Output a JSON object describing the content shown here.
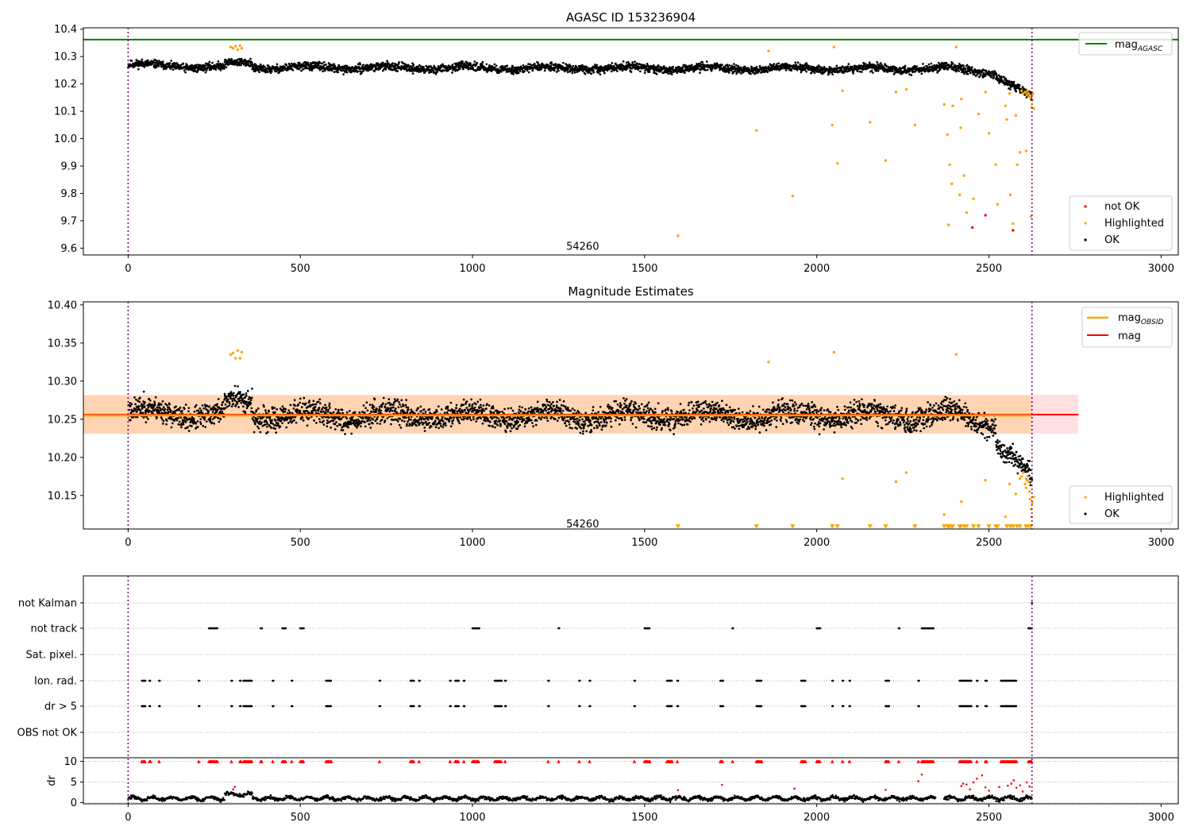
{
  "chart_data": [
    {
      "type": "scatter",
      "title": "AGASC ID 153236904",
      "xlim": [
        -130,
        3050
      ],
      "ylim": [
        9.575,
        10.405
      ],
      "xticks": [
        0,
        500,
        1000,
        1500,
        2000,
        2500,
        3000
      ],
      "yticks": [
        9.6,
        9.7,
        9.8,
        9.9,
        10.0,
        10.1,
        10.2,
        10.3,
        10.4
      ],
      "ytick_labels": [
        "9.6",
        "9.7",
        "9.8",
        "9.9",
        "10.0",
        "10.1",
        "10.2",
        "10.3",
        "10.4"
      ],
      "annotation": {
        "x": 1320,
        "y": 9.6,
        "text": "54260"
      },
      "vlines": [
        0,
        2625
      ],
      "hline": {
        "name": "mag_AGASC",
        "y": 10.362,
        "color": "#008000"
      },
      "legend": {
        "position": "top-right",
        "entries": [
          {
            "base": "mag",
            "sub": "AGASC",
            "color": "#008000",
            "marker": "line"
          }
        ]
      },
      "legend2": {
        "position": "bottom-right",
        "entries": [
          {
            "label": "not OK",
            "color": "#ff0000"
          },
          {
            "label": "Highlighted",
            "color": "#ffa500"
          },
          {
            "label": "OK",
            "color": "#000000"
          }
        ]
      },
      "ok_series": {
        "name": "OK",
        "color": "#000000",
        "x_start": 0,
        "x_end": 2625,
        "segments": [
          {
            "x0": 0,
            "x1": 280,
            "y0": 10.27,
            "y1": 10.26
          },
          {
            "x0": 280,
            "x1": 360,
            "y0": 10.27,
            "y1": 10.28
          },
          {
            "x0": 360,
            "x1": 2360,
            "y0": 10.26,
            "y1": 10.255
          },
          {
            "x0": 2360,
            "x1": 2520,
            "y0": 10.26,
            "y1": 10.24
          },
          {
            "x0": 2520,
            "x1": 2625,
            "y0": 10.23,
            "y1": 10.15
          }
        ],
        "scatter": 0.025
      },
      "highlighted": {
        "name": "Highlighted",
        "color": "#ffa500",
        "points": [
          [
            298,
            10.335
          ],
          [
            305,
            10.33
          ],
          [
            312,
            10.338
          ],
          [
            318,
            10.325
          ],
          [
            325,
            10.34
          ],
          [
            330,
            10.33
          ],
          [
            1597,
            9.645
          ],
          [
            1825,
            10.03
          ],
          [
            1860,
            10.32
          ],
          [
            1930,
            9.79
          ],
          [
            2045,
            10.05
          ],
          [
            2050,
            10.335
          ],
          [
            2060,
            9.91
          ],
          [
            2075,
            10.175
          ],
          [
            2155,
            10.06
          ],
          [
            2200,
            9.92
          ],
          [
            2230,
            10.17
          ],
          [
            2260,
            10.18
          ],
          [
            2285,
            10.05
          ],
          [
            2370,
            10.125
          ],
          [
            2380,
            10.015
          ],
          [
            2383,
            9.685
          ],
          [
            2386,
            9.905
          ],
          [
            2392,
            9.835
          ],
          [
            2395,
            10.12
          ],
          [
            2405,
            10.335
          ],
          [
            2415,
            9.795
          ],
          [
            2418,
            10.04
          ],
          [
            2420,
            10.145
          ],
          [
            2428,
            9.865
          ],
          [
            2435,
            9.73
          ],
          [
            2455,
            9.78
          ],
          [
            2470,
            10.09
          ],
          [
            2490,
            10.17
          ],
          [
            2500,
            10.02
          ],
          [
            2520,
            9.905
          ],
          [
            2525,
            9.76
          ],
          [
            2548,
            10.12
          ],
          [
            2552,
            10.07
          ],
          [
            2560,
            10.165
          ],
          [
            2562,
            9.795
          ],
          [
            2570,
            9.69
          ],
          [
            2578,
            10.085
          ],
          [
            2582,
            9.905
          ],
          [
            2590,
            9.95
          ],
          [
            2595,
            10.175
          ],
          [
            2600,
            10.165
          ],
          [
            2605,
            10.17
          ],
          [
            2608,
            9.955
          ],
          [
            2610,
            10.16
          ],
          [
            2612,
            10.175
          ],
          [
            2615,
            10.165
          ],
          [
            2618,
            10.155
          ],
          [
            2620,
            10.15
          ],
          [
            2622,
            9.715
          ],
          [
            2624,
            10.115
          ],
          [
            2626,
            10.14
          ],
          [
            2628,
            10.165
          ],
          [
            2630,
            10.11
          ]
        ]
      },
      "not_ok": {
        "name": "not OK",
        "color": "#ff0000",
        "points": [
          [
            2452,
            9.675
          ],
          [
            2490,
            9.72
          ],
          [
            2570,
            9.665
          ]
        ]
      }
    },
    {
      "type": "scatter",
      "title": "Magnitude Estimates",
      "xlim": [
        -130,
        3050
      ],
      "ylim": [
        10.106,
        10.404
      ],
      "xticks": [
        0,
        500,
        1000,
        1500,
        2000,
        2500,
        3000
      ],
      "yticks": [
        10.15,
        10.2,
        10.25,
        10.3,
        10.35,
        10.4
      ],
      "ytick_labels": [
        "10.15",
        "10.20",
        "10.25",
        "10.30",
        "10.35",
        "10.40"
      ],
      "annotation": {
        "x": 1320,
        "y": 10.11,
        "text": "54260"
      },
      "vlines": [
        0,
        2625
      ],
      "mag": {
        "name": "mag",
        "y": 10.256,
        "color": "#ff0000",
        "band": [
          10.231,
          10.282
        ],
        "x_end": 2760
      },
      "mag_obsid": {
        "name": "mag_OBSID",
        "y": 10.255,
        "color": "#ffa500",
        "band": [
          10.231,
          10.281
        ],
        "x_end": 2625
      },
      "legend": {
        "position": "top-right",
        "entries": [
          {
            "base": "mag",
            "sub": "OBSID",
            "color": "#ffa500",
            "marker": "line"
          },
          {
            "base": "mag",
            "sub": "",
            "color": "#ff0000",
            "marker": "line"
          }
        ]
      },
      "legend2": {
        "position": "bottom-right",
        "entries": [
          {
            "label": "Highlighted",
            "color": "#ffa500"
          },
          {
            "label": "OK",
            "color": "#000000"
          }
        ]
      },
      "ok_series": {
        "name": "OK",
        "color": "#000000",
        "x_start": 0,
        "x_end": 2625,
        "segments": [
          {
            "x0": 0,
            "x1": 280,
            "y0": 10.26,
            "y1": 10.255
          },
          {
            "x0": 280,
            "x1": 360,
            "y0": 10.27,
            "y1": 10.275
          },
          {
            "x0": 360,
            "x1": 2360,
            "y0": 10.255,
            "y1": 10.255
          },
          {
            "x0": 2360,
            "x1": 2520,
            "y0": 10.26,
            "y1": 10.245
          },
          {
            "x0": 2520,
            "x1": 2625,
            "y0": 10.22,
            "y1": 10.17
          }
        ],
        "scatter": 0.026
      },
      "highlighted": {
        "name": "Highlighted",
        "color": "#ffa500",
        "points": [
          [
            298,
            10.335
          ],
          [
            305,
            10.337
          ],
          [
            312,
            10.33
          ],
          [
            318,
            10.34
          ],
          [
            325,
            10.33
          ],
          [
            330,
            10.338
          ],
          [
            1860,
            10.325
          ],
          [
            2050,
            10.338
          ],
          [
            2075,
            10.172
          ],
          [
            2230,
            10.168
          ],
          [
            2260,
            10.18
          ],
          [
            2370,
            10.125
          ],
          [
            2405,
            10.335
          ],
          [
            2420,
            10.142
          ],
          [
            2490,
            10.17
          ],
          [
            2548,
            10.122
          ],
          [
            2560,
            10.165
          ],
          [
            2578,
            10.152
          ],
          [
            2590,
            10.172
          ],
          [
            2595,
            10.175
          ],
          [
            2600,
            10.18
          ],
          [
            2605,
            10.165
          ],
          [
            2608,
            10.16
          ],
          [
            2610,
            10.17
          ],
          [
            2612,
            10.175
          ],
          [
            2615,
            10.168
          ],
          [
            2618,
            10.155
          ],
          [
            2620,
            10.145
          ],
          [
            2622,
            10.132
          ],
          [
            2624,
            10.122
          ],
          [
            2626,
            10.14
          ],
          [
            2630,
            10.148
          ]
        ]
      },
      "below_range": {
        "name": "Highlighted",
        "color": "#ffa500",
        "y": 10.109,
        "x": [
          1597,
          1825,
          1930,
          2045,
          2060,
          2155,
          2200,
          2285,
          2370,
          2380,
          2383,
          2386,
          2392,
          2395,
          2415,
          2418,
          2428,
          2435,
          2455,
          2470,
          2500,
          2520,
          2525,
          2552,
          2562,
          2570,
          2582,
          2590,
          2608,
          2615,
          2622
        ]
      }
    },
    {
      "type": "scatter",
      "title": "",
      "xlim": [
        -130,
        3050
      ],
      "xticks": [
        0,
        500,
        1000,
        1500,
        2000,
        2500,
        3000
      ],
      "vlines": [
        0,
        2625
      ],
      "categories": [
        "not Kalman",
        "not track",
        "Sat. pixel.",
        "Ion. rad.",
        "dr > 5",
        "OBS not OK"
      ],
      "flags": {
        "not Kalman": [
          2625
        ],
        "not track": [
          [
            235,
            260
          ],
          [
            385,
            390
          ],
          [
            448,
            458
          ],
          [
            500,
            510
          ],
          [
            1000,
            1020
          ],
          [
            1250,
            1252
          ],
          [
            1500,
            1515
          ],
          [
            1755,
            1757
          ],
          [
            2000,
            2010
          ],
          [
            2238,
            2240
          ],
          [
            2305,
            2340
          ],
          [
            2615,
            2625
          ]
        ],
        "Sat. pixel.": [],
        "Ion. rad.": [
          [
            40,
            50
          ],
          [
            62,
            65
          ],
          [
            90,
            92
          ],
          [
            205,
            207
          ],
          [
            300,
            302
          ],
          [
            325,
            328
          ],
          [
            335,
            360
          ],
          [
            420,
            422
          ],
          [
            475,
            477
          ],
          [
            575,
            590
          ],
          [
            730,
            732
          ],
          [
            820,
            830
          ],
          [
            845,
            847
          ],
          [
            935,
            937
          ],
          [
            950,
            960
          ],
          [
            975,
            977
          ],
          [
            1065,
            1085
          ],
          [
            1095,
            1097
          ],
          [
            1220,
            1222
          ],
          [
            1310,
            1312
          ],
          [
            1340,
            1342
          ],
          [
            1470,
            1472
          ],
          [
            1565,
            1580
          ],
          [
            1595,
            1597
          ],
          [
            1720,
            1728
          ],
          [
            1825,
            1840
          ],
          [
            1955,
            1968
          ],
          [
            2045,
            2047
          ],
          [
            2075,
            2077
          ],
          [
            2095,
            2097
          ],
          [
            2200,
            2210
          ],
          [
            2295,
            2297
          ],
          [
            2415,
            2450
          ],
          [
            2465,
            2467
          ],
          [
            2490,
            2495
          ],
          [
            2535,
            2580
          ]
        ],
        "dr > 5": [
          [
            40,
            50
          ],
          [
            62,
            65
          ],
          [
            90,
            92
          ],
          [
            205,
            207
          ],
          [
            300,
            302
          ],
          [
            325,
            328
          ],
          [
            335,
            360
          ],
          [
            420,
            422
          ],
          [
            475,
            477
          ],
          [
            575,
            590
          ],
          [
            730,
            732
          ],
          [
            820,
            830
          ],
          [
            845,
            847
          ],
          [
            935,
            937
          ],
          [
            950,
            960
          ],
          [
            975,
            977
          ],
          [
            1065,
            1085
          ],
          [
            1095,
            1097
          ],
          [
            1220,
            1222
          ],
          [
            1310,
            1312
          ],
          [
            1340,
            1342
          ],
          [
            1470,
            1472
          ],
          [
            1565,
            1580
          ],
          [
            1595,
            1597
          ],
          [
            1720,
            1728
          ],
          [
            1825,
            1840
          ],
          [
            1955,
            1968
          ],
          [
            2045,
            2047
          ],
          [
            2075,
            2077
          ],
          [
            2095,
            2097
          ],
          [
            2200,
            2210
          ],
          [
            2295,
            2297
          ],
          [
            2415,
            2450
          ],
          [
            2465,
            2467
          ],
          [
            2490,
            2495
          ],
          [
            2535,
            2580
          ]
        ],
        "OBS not OK": []
      },
      "dr": {
        "ylabel": "dr",
        "yticks": [
          0,
          5,
          10
        ],
        "ylim": [
          -0.3,
          10.5
        ],
        "ok_color": "#000000",
        "clip_color": "#ff0000",
        "clip_value": 10,
        "typical": 1.0,
        "spread": 0.8,
        "red_points": [
          [
            305,
            3.2
          ],
          [
            310,
            3.8
          ],
          [
            1597,
            3.0
          ],
          [
            1725,
            4.3
          ],
          [
            1935,
            3.4
          ],
          [
            2200,
            3.1
          ],
          [
            2295,
            5.2
          ],
          [
            2305,
            6.8
          ],
          [
            2420,
            4.0
          ],
          [
            2425,
            4.6
          ],
          [
            2435,
            4.4
          ],
          [
            2445,
            3.2
          ],
          [
            2455,
            4.9
          ],
          [
            2465,
            5.8
          ],
          [
            2480,
            6.6
          ],
          [
            2490,
            3.7
          ],
          [
            2500,
            2.9
          ],
          [
            2530,
            3.8
          ],
          [
            2555,
            4.1
          ],
          [
            2565,
            4.6
          ],
          [
            2572,
            5.4
          ],
          [
            2580,
            3.6
          ],
          [
            2590,
            4.2
          ],
          [
            2598,
            2.7
          ],
          [
            2610,
            4.9
          ],
          [
            2618,
            3.9
          ]
        ]
      }
    }
  ]
}
